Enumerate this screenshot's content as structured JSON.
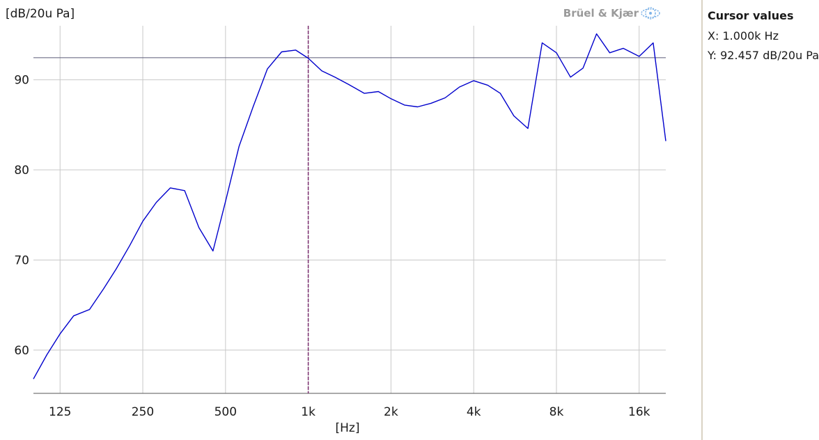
{
  "colors": {
    "series": "#0000cc",
    "grid": "#c8c8c8",
    "cursor": "#7a2d6e",
    "reference_line": "#5a5a78",
    "brand": "#9a9a9a",
    "brand_logo": "#7fb4e8"
  },
  "brand": {
    "text": "Brüel & Kjær",
    "icon": "bk-logo-icon"
  },
  "cursor_panel": {
    "title": "Cursor values",
    "x_text": "X: 1.000k Hz",
    "y_text": "Y: 92.457 dB/20u Pa"
  },
  "chart_data": {
    "type": "line",
    "x_scale": "log",
    "xlabel": "[Hz]",
    "ylabel": "[dB/20u Pa]",
    "xlim": [
      100,
      20000
    ],
    "ylim": [
      55.2,
      96
    ],
    "x_ticks": [
      {
        "value": 125,
        "label": "125"
      },
      {
        "value": 250,
        "label": "250"
      },
      {
        "value": 500,
        "label": "500"
      },
      {
        "value": 1000,
        "label": "1k"
      },
      {
        "value": 2000,
        "label": "2k"
      },
      {
        "value": 4000,
        "label": "4k"
      },
      {
        "value": 8000,
        "label": "8k"
      },
      {
        "value": 16000,
        "label": "16k"
      }
    ],
    "y_ticks": [
      {
        "value": 60,
        "label": "60"
      },
      {
        "value": 70,
        "label": "70"
      },
      {
        "value": 80,
        "label": "80"
      },
      {
        "value": 90,
        "label": "90"
      }
    ],
    "grid": true,
    "cursor": {
      "x": 1000,
      "y": 92.457
    },
    "series": [
      {
        "x": [
          100,
          112,
          125,
          140,
          160,
          180,
          200,
          224,
          250,
          280,
          315,
          355,
          400,
          450,
          500,
          560,
          630,
          710,
          800,
          900,
          1000,
          1120,
          1250,
          1400,
          1600,
          1800,
          2000,
          2240,
          2500,
          2800,
          3150,
          3550,
          4000,
          4500,
          5000,
          5600,
          6300,
          7100,
          8000,
          9000,
          10000,
          11200,
          12500,
          14000,
          16000,
          18000,
          20000
        ],
        "y": [
          56.8,
          59.5,
          61.8,
          63.8,
          64.5,
          66.8,
          69.0,
          71.6,
          74.3,
          76.4,
          78.0,
          77.7,
          73.6,
          71.0,
          76.5,
          82.6,
          87.0,
          91.2,
          93.1,
          93.3,
          92.4,
          91.0,
          90.3,
          89.5,
          88.5,
          88.7,
          87.9,
          87.2,
          87.0,
          87.4,
          88.0,
          89.2,
          89.9,
          89.4,
          88.5,
          86.0,
          84.6,
          94.1,
          93.0,
          90.3,
          91.3,
          95.1,
          93.0,
          93.5,
          92.6,
          94.1,
          83.2
        ]
      }
    ]
  }
}
